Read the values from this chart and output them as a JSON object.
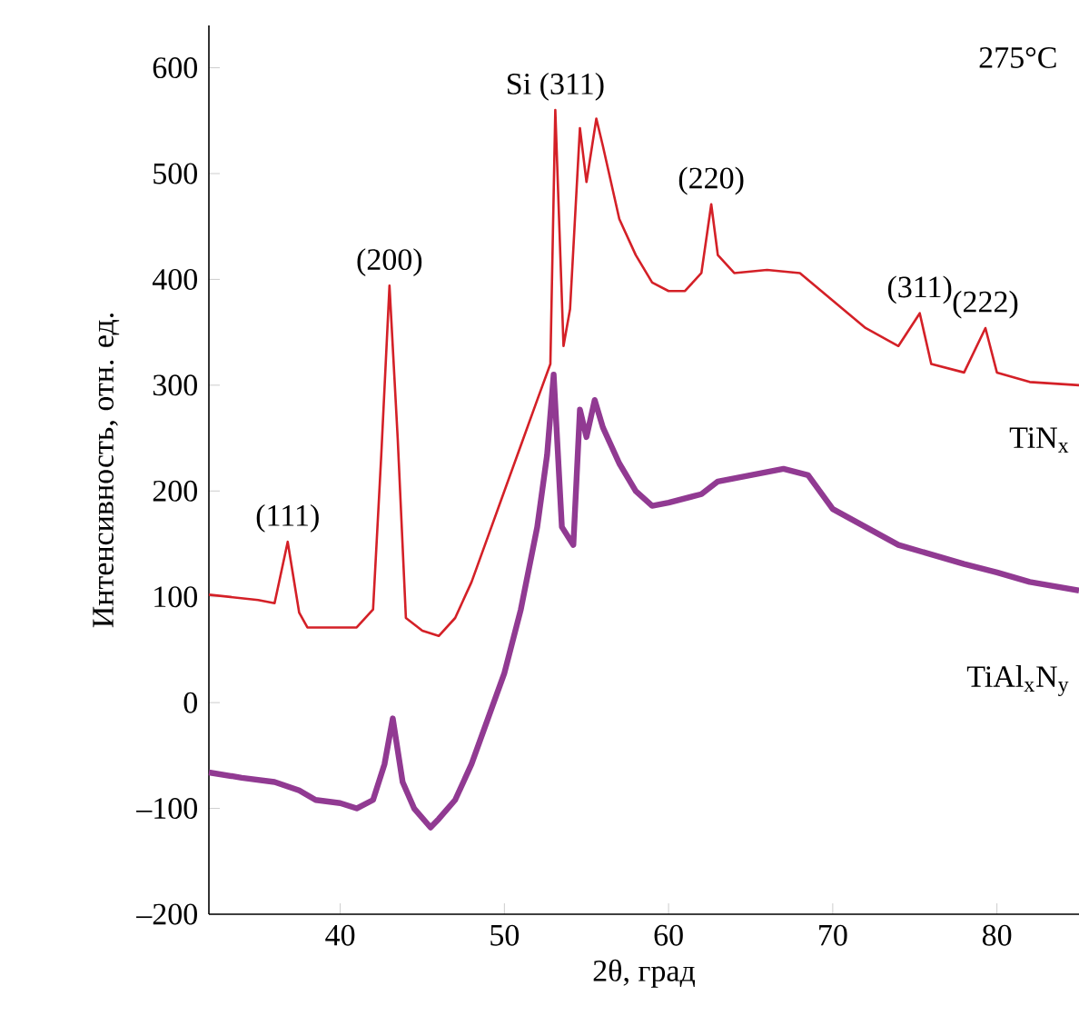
{
  "chart_data": {
    "type": "line",
    "xlabel": "2θ, град",
    "ylabel": "Интенсивность, отн. ед.",
    "xlim": [
      32,
      85
    ],
    "ylim": [
      -200,
      640
    ],
    "xticks": [
      40,
      50,
      60,
      70,
      80
    ],
    "yticks": [
      {
        "value": -200,
        "label": "–200"
      },
      {
        "value": -100,
        "label": "–100"
      },
      0,
      100,
      200,
      300,
      400,
      500,
      600
    ],
    "grid": false,
    "marker": "none",
    "line_style": "solid",
    "series": [
      {
        "name": "TiN$_{x}$",
        "color": "#d42027",
        "x": [
          32,
          35,
          36,
          36.8,
          37.5,
          38,
          41,
          42,
          42.5,
          43,
          43.5,
          44,
          45,
          46,
          47,
          48,
          49,
          50,
          51,
          52,
          52.8,
          53.1,
          53.6,
          54,
          54.6,
          55,
          55.6,
          56,
          57,
          58,
          59,
          60,
          61,
          62,
          62.6,
          63,
          64,
          66,
          68,
          70,
          72,
          74,
          75.3,
          76,
          78,
          79.3,
          80,
          82,
          85
        ],
        "values": [
          102,
          97,
          94,
          152,
          85,
          71,
          71,
          88,
          234,
          394,
          250,
          80,
          68,
          63,
          80,
          114,
          157,
          200,
          243,
          286,
          320,
          560,
          337,
          372,
          543,
          492,
          552,
          526,
          457,
          423,
          397,
          389,
          389,
          406,
          471,
          423,
          406,
          409,
          406,
          380,
          354,
          337,
          368,
          320,
          312,
          354,
          312,
          303,
          300
        ]
      },
      {
        "name": "TiAl$_{x}$N$_{y}$",
        "color": "#913a92",
        "x": [
          32,
          34,
          36,
          37.5,
          38.5,
          40,
          41,
          42,
          42.7,
          43.2,
          43.8,
          44.5,
          45.5,
          46,
          47,
          48,
          49,
          50,
          51,
          52,
          52.6,
          53,
          53.5,
          54.2,
          54.6,
          55,
          55.5,
          56,
          57,
          58,
          59,
          60,
          62,
          63,
          65,
          67,
          68.5,
          70,
          72,
          74,
          76,
          78,
          80,
          82,
          85
        ],
        "values": [
          -66,
          -71,
          -75,
          -83,
          -92,
          -95,
          -100,
          -92,
          -58,
          -15,
          -75,
          -100,
          -118,
          -110,
          -92,
          -58,
          -15,
          28,
          88,
          166,
          234,
          310,
          166,
          149,
          277,
          251,
          286,
          260,
          226,
          200,
          186,
          189,
          197,
          209,
          215,
          221,
          215,
          183,
          166,
          149,
          140,
          131,
          123,
          114,
          106
        ]
      }
    ],
    "annotations": [
      "275°C",
      {
        "text": "(111)",
        "x": 36.8,
        "y": 152
      },
      {
        "text": "(200)",
        "x": 43,
        "y": 394
      },
      {
        "text": "Si (311)",
        "x": 53.1,
        "y": 560
      },
      {
        "text": "(220)",
        "x": 62.6,
        "y": 471
      },
      {
        "text": "(311)",
        "x": 75.3,
        "y": 368
      },
      {
        "text": "(222)",
        "x": 79.3,
        "y": 354
      }
    ]
  }
}
